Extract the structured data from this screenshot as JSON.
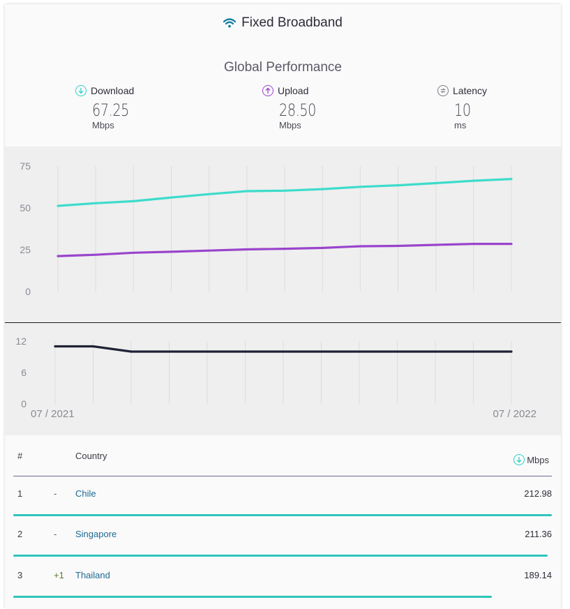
{
  "header": {
    "title": "Fixed Broadband",
    "icon": "wifi-icon"
  },
  "subtitle": "Global Performance",
  "stats": {
    "download": {
      "label": "Download",
      "value": "67.25",
      "unit": "Mbps",
      "icon": "arrow-down-circle-icon",
      "color": "#2ed1c5"
    },
    "upload": {
      "label": "Upload",
      "value": "28.50",
      "unit": "Mbps",
      "icon": "arrow-up-circle-icon",
      "color": "#9b3fd0"
    },
    "latency": {
      "label": "Latency",
      "value": "10",
      "unit": "ms",
      "icon": "latency-circle-icon",
      "color": "#7a7a85"
    }
  },
  "chart_data": [
    {
      "type": "line",
      "title": "",
      "ylim": [
        0,
        75
      ],
      "yticks": [
        "75",
        "50",
        "25",
        "0"
      ],
      "grid": true,
      "x_count": 13,
      "series": [
        {
          "values": [
            51.2,
            52.8,
            54.0,
            56.2,
            58.2,
            60.0,
            60.3,
            61.2,
            62.6,
            63.5,
            64.8,
            66.2,
            67.25
          ],
          "color": "#3ddccb"
        },
        {
          "values": [
            21.2,
            22.0,
            23.2,
            23.8,
            24.5,
            25.2,
            25.6,
            26.1,
            27.1,
            27.3,
            27.9,
            28.5,
            28.5
          ],
          "color": "#9a44cc"
        }
      ]
    },
    {
      "type": "line",
      "title": "",
      "ylim": [
        0,
        12
      ],
      "yticks": [
        "12",
        "6",
        "0"
      ],
      "grid": true,
      "x_count": 13,
      "x_labels": {
        "start": "07 / 2021",
        "end": "07 / 2022"
      },
      "series": [
        {
          "values": [
            11,
            11,
            10,
            10,
            10,
            10,
            10,
            10,
            10,
            10,
            10,
            10,
            10
          ],
          "color": "#1f2235"
        }
      ]
    }
  ],
  "table": {
    "headers": {
      "rank": "#",
      "country": "Country",
      "speed": "Mbps"
    },
    "rows": [
      {
        "rank": "1",
        "change": "-",
        "country": "Chile",
        "speed": "212.98",
        "bar": 1.0
      },
      {
        "rank": "2",
        "change": "-",
        "country": "Singapore",
        "speed": "211.36",
        "bar": 0.992
      },
      {
        "rank": "3",
        "change": "+1",
        "country": "Thailand",
        "speed": "189.14",
        "bar": 0.888
      }
    ]
  }
}
